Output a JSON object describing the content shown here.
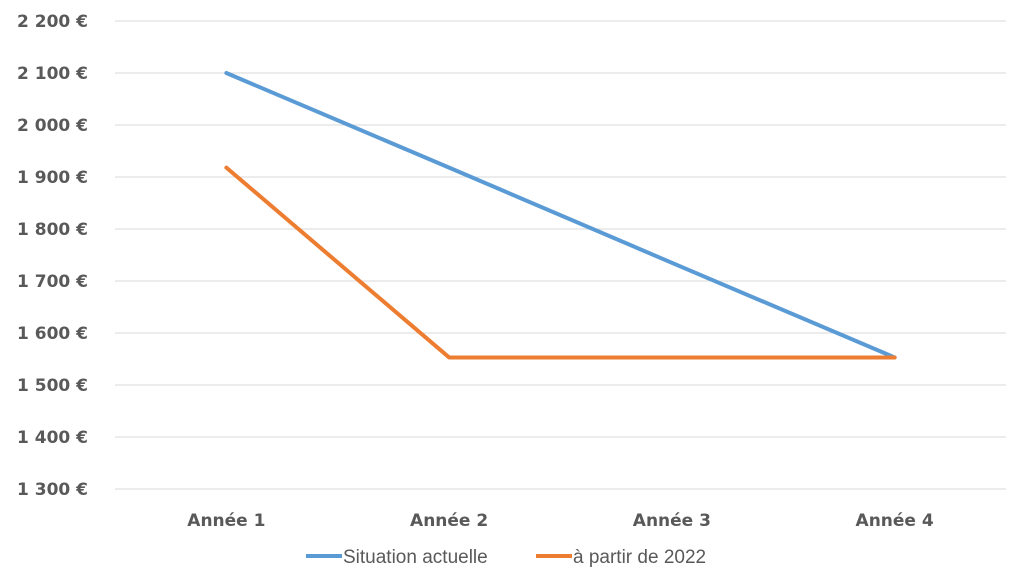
{
  "chart_data": {
    "type": "line",
    "categories": [
      "Année 1",
      "Année 2",
      "Année 3",
      "Année 4"
    ],
    "series": [
      {
        "name": "Situation actuelle",
        "color": "#5B9BD5",
        "values": [
          2100,
          1918,
          1735,
          1553
        ]
      },
      {
        "name": "à partir de 2022",
        "color": "#ED7D31",
        "values": [
          1918,
          1553,
          1553,
          1553
        ]
      }
    ],
    "ylim": [
      1300,
      2200
    ],
    "yticks": [
      1300,
      1400,
      1500,
      1600,
      1700,
      1800,
      1900,
      2000,
      2100,
      2200
    ],
    "ytick_labels": [
      "1 300 €",
      "1 400 €",
      "1 500 €",
      "1 600 €",
      "1 700 €",
      "1 800 €",
      "1 900 €",
      "2 000 €",
      "2 100 €",
      "2 200 €"
    ],
    "grid": true,
    "legend": "bottom",
    "title": "",
    "xlabel": "",
    "ylabel": "",
    "gridline_color": "#D9D9D9"
  }
}
